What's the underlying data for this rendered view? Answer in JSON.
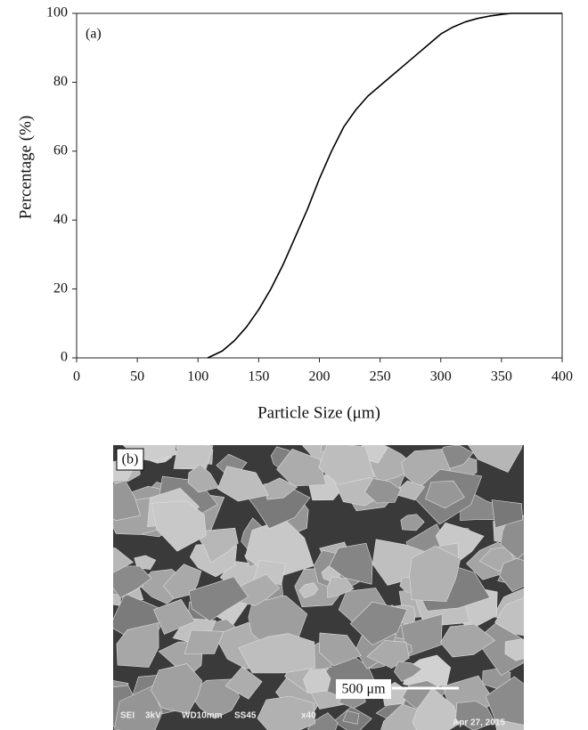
{
  "chart_data": {
    "type": "line",
    "annotation": "(a)",
    "x_label": "Particle Size (μm)",
    "y_label": "Percentage (%)",
    "x": [
      108,
      120,
      130,
      140,
      150,
      160,
      170,
      180,
      190,
      200,
      210,
      220,
      230,
      240,
      250,
      260,
      270,
      280,
      290,
      300,
      310,
      320,
      330,
      340,
      350,
      358,
      400
    ],
    "values": [
      0,
      2,
      5,
      9,
      14,
      20,
      27,
      35,
      43,
      52,
      60,
      67,
      72,
      76,
      79,
      82,
      85,
      88,
      91,
      94,
      96,
      97.5,
      98.5,
      99.2,
      99.7,
      100,
      100
    ],
    "color": "#000000",
    "xlim": [
      0,
      400
    ],
    "xticks": [
      0,
      50,
      100,
      150,
      200,
      250,
      300,
      350,
      400
    ],
    "ylim": [
      0,
      100
    ],
    "yticks": [
      0,
      20,
      40,
      60,
      80,
      100
    ]
  },
  "image_panel": {
    "label": "(b)",
    "scale_bar": "500 μm",
    "info": [
      "SEI",
      "3kV",
      "WD10mm",
      "SS45",
      "x40",
      "Apr 27, 2015"
    ]
  }
}
